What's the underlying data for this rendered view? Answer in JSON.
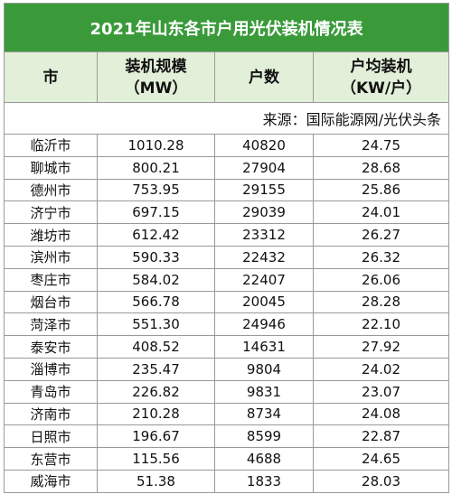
{
  "title": "2021年山东各市户用光伏装机情况表",
  "header": [
    [
      "市"
    ],
    [
      "装机规模",
      "（MW）"
    ],
    [
      "户数"
    ],
    [
      "户均装机",
      "（KW/户）"
    ]
  ],
  "source": "来源：国际能源网/光伏头条",
  "rows": [
    [
      "临沂市",
      "1010.28",
      "40820",
      "24.75"
    ],
    [
      "聊城市",
      "800.21",
      "27904",
      "28.68"
    ],
    [
      "德州市",
      "753.95",
      "29155",
      "25.86"
    ],
    [
      "济宁市",
      "697.15",
      "29039",
      "24.01"
    ],
    [
      "潍坊市",
      "612.42",
      "23312",
      "26.27"
    ],
    [
      "滨州市",
      "590.33",
      "22432",
      "26.32"
    ],
    [
      "枣庄市",
      "584.02",
      "22407",
      "26.06"
    ],
    [
      "烟台市",
      "566.78",
      "20045",
      "28.28"
    ],
    [
      "菏泽市",
      "551.30",
      "24946",
      "22.10"
    ],
    [
      "泰安市",
      "408.52",
      "14631",
      "27.92"
    ],
    [
      "淄博市",
      "235.47",
      "9804",
      "24.02"
    ],
    [
      "青岛市",
      "226.82",
      "9831",
      "23.07"
    ],
    [
      "济南市",
      "210.28",
      "8734",
      "24.08"
    ],
    [
      "日照市",
      "196.67",
      "8599",
      "22.87"
    ],
    [
      "东营市",
      "115.56",
      "4688",
      "24.65"
    ],
    [
      "威海市",
      "51.38",
      "1833",
      "28.03"
    ]
  ]
}
